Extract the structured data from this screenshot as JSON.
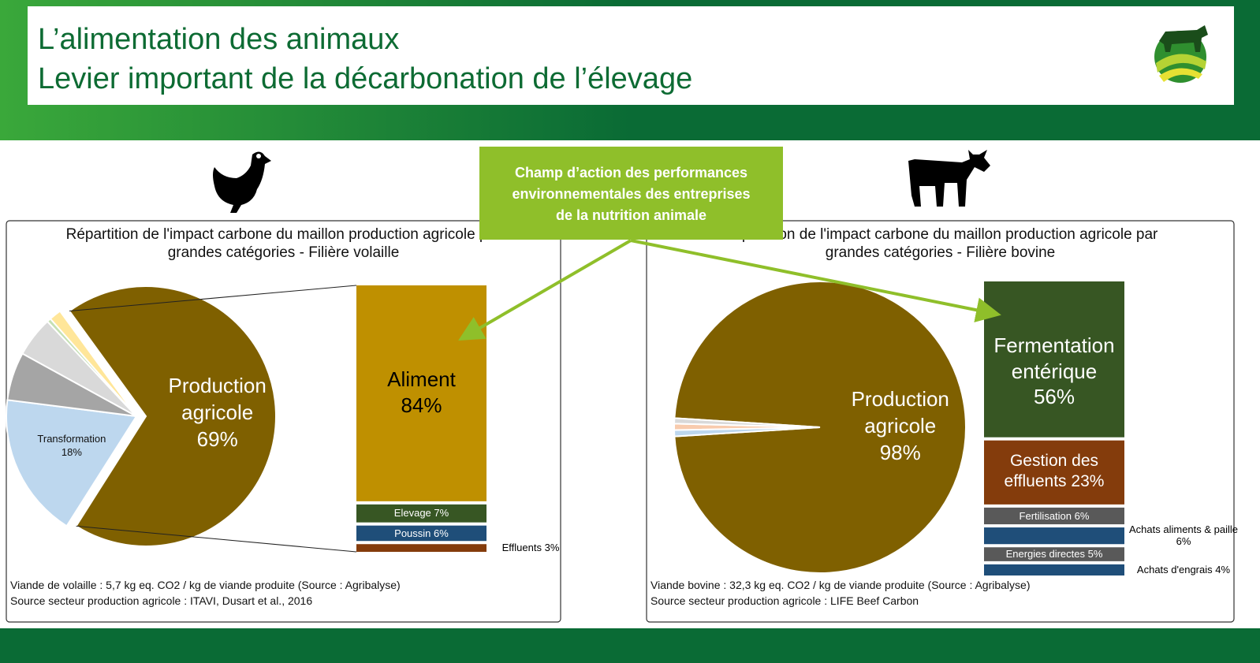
{
  "header": {
    "title_lines": [
      "L’alimentation des animaux",
      "Levier important de la décarbonation de l’élevage"
    ]
  },
  "callout": {
    "lines": [
      "Champ d’action des performances",
      "environnementales des entreprises",
      "de la nutrition animale"
    ]
  },
  "chart_data": [
    {
      "type": "bar-of-pie",
      "title": "Répartition de l'impact carbone du maillon production agricole par grandes catégories - Filière volaille",
      "pie": {
        "categories": [
          "Production agricole",
          "Transformation",
          null,
          null,
          null,
          null
        ],
        "values": [
          69,
          18,
          6,
          5,
          0.5,
          1.5
        ],
        "value_labels": [
          "69%",
          "18%",
          null,
          null,
          null,
          null
        ],
        "colors": [
          "#7f6000",
          "#bdd7ee",
          "#a5a5a5",
          "#d9d9d9",
          "#c5e0b4",
          "#ffe699"
        ]
      },
      "bar": {
        "categories": [
          "Aliment",
          "Elevage",
          "Poussin",
          "Effluents"
        ],
        "values": [
          84,
          7,
          6,
          3
        ],
        "value_labels": [
          "84%",
          "7%",
          "6%",
          "3%"
        ],
        "colors": [
          "#bf9000",
          "#375623",
          "#1f4e79",
          "#843c0c"
        ]
      },
      "notes": [
        "Viande de volaille : 5,7 kg eq. CO2 / kg de viande produite (Source : Agribalyse)",
        "Source secteur production agricole : ITAVI, Dusart et al., 2016"
      ]
    },
    {
      "type": "bar-of-pie",
      "title": "Répartition de l'impact carbone du maillon production agricole par grandes catégories - Filière bovine",
      "pie": {
        "categories": [
          "Production agricole",
          null,
          null,
          null
        ],
        "values": [
          98,
          0.7,
          0.7,
          0.6
        ],
        "value_labels": [
          "98%",
          null,
          null,
          null
        ],
        "colors": [
          "#7f6000",
          "#bdd7ee",
          "#f8cbad",
          "#d9d9d9"
        ]
      },
      "bar": {
        "categories": [
          "Fermentation entérique",
          "Gestion des effluents",
          "Fertilisation",
          "Achats aliments & paille",
          "Energies directes",
          "Achats d'engrais"
        ],
        "values": [
          56,
          23,
          6,
          6,
          5,
          4
        ],
        "value_labels": [
          "56%",
          "23%",
          "6%",
          "6%",
          "5%",
          "4%"
        ],
        "colors": [
          "#375623",
          "#843c0c",
          "#595959",
          "#1f4e79",
          "#595959",
          "#1f4e79"
        ]
      },
      "notes": [
        "Viande bovine : 32,3 kg eq. CO2 / kg de viande produite (Source : Agribalyse)",
        "Source secteur production agricole : LIFE Beef Carbon"
      ]
    }
  ]
}
